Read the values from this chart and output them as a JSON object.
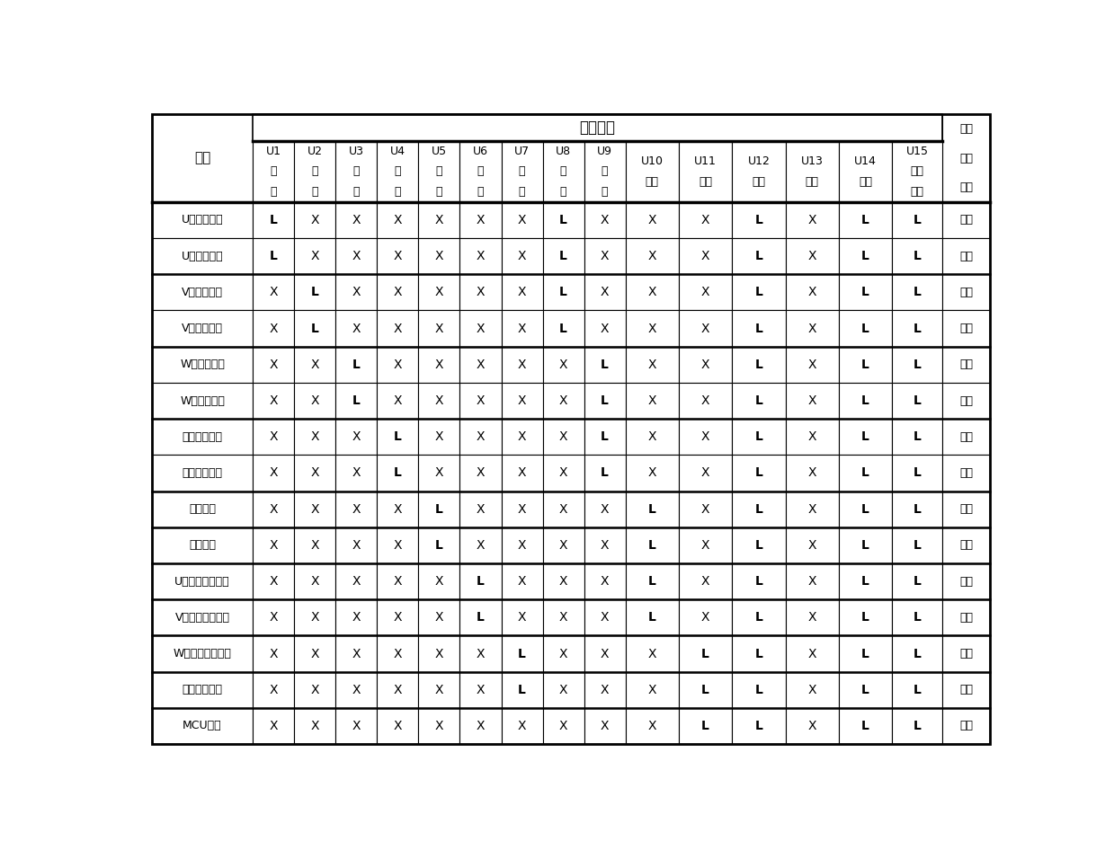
{
  "title_logic": "逻辑控制",
  "row_header": "故障",
  "col_headers_u1_9": [
    "U1",
    "U2",
    "U3",
    "U4",
    "U5",
    "U6",
    "U7",
    "U8",
    "U9"
  ],
  "col_headers_u10_14": [
    "U10",
    "U11",
    "U12",
    "U13",
    "U14"
  ],
  "col_header_u15": "U15",
  "col_sub_u1_9": [
    "输",
    "输",
    "输",
    "输",
    "输",
    "输",
    "输",
    "输",
    "输"
  ],
  "col_sub2_u1_9": [
    "出",
    "出",
    "出",
    "出",
    "出",
    "出",
    "出",
    "出",
    "出"
  ],
  "col_sub_u10_14": [
    "输出",
    "输出",
    "输出",
    "输出",
    "输出"
  ],
  "col_sub_u15_1": "使能",
  "col_sub_u15_2": "输入",
  "motor_header": [
    "电机",
    "运转",
    "状态"
  ],
  "fault_rows": [
    "U相正向过流",
    "U相负向过流",
    "V相正向过流",
    "V相负向过流",
    "W相正向过流",
    "W相负向过流",
    "母线正向过流",
    "母线负向过流",
    "母线过压",
    "母线欠压",
    "U相功率器件过温",
    "V相功率器件过温",
    "W相功率器件过温",
    "电机定子过温",
    "MCU复位"
  ],
  "data": [
    [
      "L",
      "X",
      "X",
      "X",
      "X",
      "X",
      "X",
      "L",
      "X",
      "X",
      "X",
      "L",
      "X",
      "L",
      "L",
      "停转"
    ],
    [
      "L",
      "X",
      "X",
      "X",
      "X",
      "X",
      "X",
      "L",
      "X",
      "X",
      "X",
      "L",
      "X",
      "L",
      "L",
      "停转"
    ],
    [
      "X",
      "L",
      "X",
      "X",
      "X",
      "X",
      "X",
      "L",
      "X",
      "X",
      "X",
      "L",
      "X",
      "L",
      "L",
      "停转"
    ],
    [
      "X",
      "L",
      "X",
      "X",
      "X",
      "X",
      "X",
      "L",
      "X",
      "X",
      "X",
      "L",
      "X",
      "L",
      "L",
      "停转"
    ],
    [
      "X",
      "X",
      "L",
      "X",
      "X",
      "X",
      "X",
      "X",
      "L",
      "X",
      "X",
      "L",
      "X",
      "L",
      "L",
      "停转"
    ],
    [
      "X",
      "X",
      "L",
      "X",
      "X",
      "X",
      "X",
      "X",
      "L",
      "X",
      "X",
      "L",
      "X",
      "L",
      "L",
      "停转"
    ],
    [
      "X",
      "X",
      "X",
      "L",
      "X",
      "X",
      "X",
      "X",
      "L",
      "X",
      "X",
      "L",
      "X",
      "L",
      "L",
      "停转"
    ],
    [
      "X",
      "X",
      "X",
      "L",
      "X",
      "X",
      "X",
      "X",
      "L",
      "X",
      "X",
      "L",
      "X",
      "L",
      "L",
      "停转"
    ],
    [
      "X",
      "X",
      "X",
      "X",
      "L",
      "X",
      "X",
      "X",
      "X",
      "L",
      "X",
      "L",
      "X",
      "L",
      "L",
      "停转"
    ],
    [
      "X",
      "X",
      "X",
      "X",
      "L",
      "X",
      "X",
      "X",
      "X",
      "L",
      "X",
      "L",
      "X",
      "L",
      "L",
      "停转"
    ],
    [
      "X",
      "X",
      "X",
      "X",
      "X",
      "L",
      "X",
      "X",
      "X",
      "L",
      "X",
      "L",
      "X",
      "L",
      "L",
      "停转"
    ],
    [
      "X",
      "X",
      "X",
      "X",
      "X",
      "L",
      "X",
      "X",
      "X",
      "L",
      "X",
      "L",
      "X",
      "L",
      "L",
      "停转"
    ],
    [
      "X",
      "X",
      "X",
      "X",
      "X",
      "X",
      "L",
      "X",
      "X",
      "X",
      "L",
      "L",
      "X",
      "L",
      "L",
      "停转"
    ],
    [
      "X",
      "X",
      "X",
      "X",
      "X",
      "X",
      "L",
      "X",
      "X",
      "X",
      "L",
      "L",
      "X",
      "L",
      "L",
      "停转"
    ],
    [
      "X",
      "X",
      "X",
      "X",
      "X",
      "X",
      "X",
      "X",
      "X",
      "X",
      "L",
      "L",
      "X",
      "L",
      "L",
      "停转"
    ]
  ],
  "thick_sep_after_rows": [
    1,
    3,
    5,
    7,
    8,
    9,
    10,
    11,
    12,
    13
  ],
  "bg_color": "#ffffff"
}
